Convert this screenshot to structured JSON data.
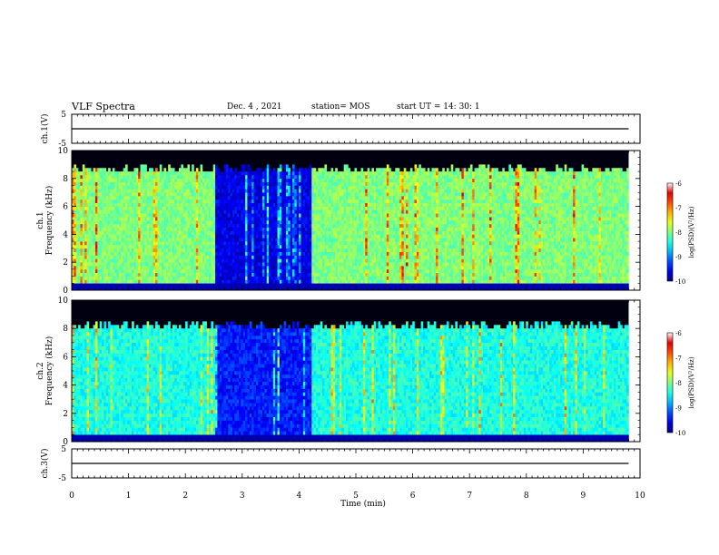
{
  "header": {
    "title": "VLF Spectra",
    "date": "Dec. 4 , 2021",
    "station": "station= MOS",
    "start_ut": "start  UT =   14: 30: 1"
  },
  "chart_data": [
    {
      "type": "line",
      "panel": "ch1-voltage",
      "ylabel": "ch.1(V)",
      "ylim": [
        -5,
        5
      ],
      "yticks": [
        "5",
        "-5"
      ],
      "xlim": [
        0,
        10
      ],
      "series": [
        {
          "x": [
            0,
            9.8
          ],
          "values": [
            0,
            0
          ]
        }
      ]
    },
    {
      "type": "heatmap",
      "panel": "ch1-spectrogram",
      "ylabel": "ch.1\nFrequency (kHz)",
      "ylim": [
        0,
        10
      ],
      "yticks": [
        "0",
        "2",
        "4",
        "6",
        "8",
        "10"
      ],
      "xlim": [
        0,
        10
      ],
      "data_extent_min": 9.8,
      "colorbar": {
        "label": "log(PSD)(V²/Hz)",
        "range": [
          -10,
          -6
        ],
        "ticks": [
          "-6",
          "-7",
          "-8",
          "-9",
          "-10"
        ]
      },
      "bands": [
        {
          "t0": 0.0,
          "t1": 2.5,
          "fmax": 9.0,
          "level": -8.0
        },
        {
          "t0": 2.5,
          "t1": 4.2,
          "fmax": 9.0,
          "level": -9.6
        },
        {
          "t0": 4.2,
          "t1": 9.8,
          "fmax": 9.0,
          "level": -8.0
        }
      ]
    },
    {
      "type": "heatmap",
      "panel": "ch2-spectrogram",
      "ylabel": "ch.2\nFrequency (kHz)",
      "ylim": [
        0,
        10
      ],
      "yticks": [
        "0",
        "2",
        "4",
        "6",
        "8",
        "10"
      ],
      "xlim": [
        0,
        10
      ],
      "data_extent_min": 9.8,
      "colorbar": {
        "label": "log(PSD)(V²/Hz)",
        "range": [
          -10,
          -6
        ],
        "ticks": [
          "-6",
          "-7",
          "-8",
          "-9",
          "-10"
        ]
      },
      "bands": [
        {
          "t0": 0.0,
          "t1": 2.5,
          "fmax": 8.5,
          "level": -8.4
        },
        {
          "t0": 2.5,
          "t1": 4.2,
          "fmax": 8.5,
          "level": -9.4
        },
        {
          "t0": 4.2,
          "t1": 9.8,
          "fmax": 8.5,
          "level": -8.4
        }
      ]
    },
    {
      "type": "line",
      "panel": "ch3-voltage",
      "ylabel": "ch.3(V)",
      "ylim": [
        -5,
        5
      ],
      "yticks": [
        "5",
        "-5"
      ],
      "xlim": [
        0,
        10
      ],
      "series": [
        {
          "x": [
            0,
            9.8
          ],
          "values": [
            0,
            0
          ]
        }
      ]
    }
  ],
  "xaxis": {
    "label": "Time (min)",
    "ticks": [
      "0",
      "1",
      "2",
      "3",
      "4",
      "5",
      "6",
      "7",
      "8",
      "9",
      "10"
    ]
  }
}
